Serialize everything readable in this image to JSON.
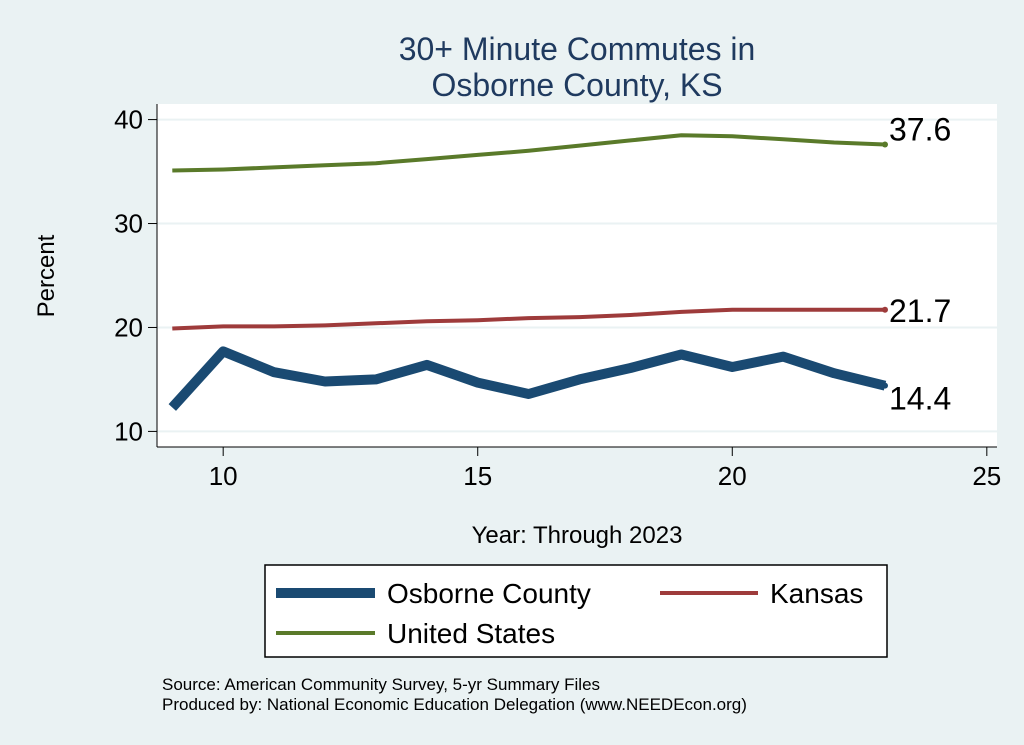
{
  "chart_data": {
    "type": "line",
    "title": "30+ Minute Commutes in",
    "subtitle": "Osborne County, KS",
    "xlabel": "Year: Through 2023",
    "ylabel": "Percent",
    "xlim": [
      8.7,
      25.2
    ],
    "ylim": [
      8.5,
      41.5
    ],
    "xticks": [
      10,
      15,
      20,
      25
    ],
    "yticks": [
      10,
      20,
      30,
      40
    ],
    "grid": true,
    "legend_position": "bottom",
    "series": [
      {
        "name": "Osborne County",
        "color": "#1a4a72",
        "x": [
          9,
          10,
          11,
          12,
          13,
          14,
          15,
          16,
          17,
          18,
          19,
          20,
          21,
          22,
          23
        ],
        "values": [
          12.3,
          17.7,
          15.7,
          14.8,
          15.0,
          16.4,
          14.7,
          13.6,
          15.0,
          16.1,
          17.4,
          16.2,
          17.2,
          15.6,
          14.4
        ],
        "end_label": "14.4"
      },
      {
        "name": "Kansas",
        "color": "#9e3b3b",
        "x": [
          9,
          10,
          11,
          12,
          13,
          14,
          15,
          16,
          17,
          18,
          19,
          20,
          21,
          22,
          23
        ],
        "values": [
          19.9,
          20.1,
          20.1,
          20.2,
          20.4,
          20.6,
          20.7,
          20.9,
          21.0,
          21.2,
          21.5,
          21.7,
          21.7,
          21.7,
          21.7
        ],
        "end_label": "21.7"
      },
      {
        "name": "United States",
        "color": "#5a7a2a",
        "x": [
          9,
          10,
          11,
          12,
          13,
          14,
          15,
          16,
          17,
          18,
          19,
          20,
          21,
          22,
          23
        ],
        "values": [
          35.1,
          35.2,
          35.4,
          35.6,
          35.8,
          36.2,
          36.6,
          37.0,
          37.5,
          38.0,
          38.5,
          38.4,
          38.1,
          37.8,
          37.6
        ],
        "end_label": "37.6"
      }
    ],
    "notes": [
      "Source: American Community Survey, 5-yr Summary Files",
      "Produced by: National Economic Education Delegation (www.NEEDEcon.org)"
    ]
  }
}
